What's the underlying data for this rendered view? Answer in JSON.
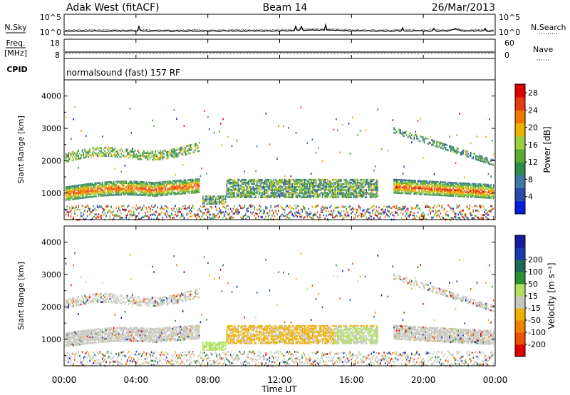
{
  "header": {
    "station": "Adak West (fitACF)",
    "beam": "Beam 14",
    "date": "26/Mar/2013"
  },
  "noise_panel": {
    "left_label": "N.Sky",
    "right_label": "N.Search",
    "left_ticks": [
      "10^5",
      "10^0"
    ],
    "right_ticks": [
      "10^5",
      "10^0"
    ]
  },
  "freq_panel": {
    "left_label_top": "Freq.",
    "left_label_bottom": "[MHz]",
    "right_label": "Nave",
    "left_ticks": [
      "18",
      "8"
    ],
    "right_ticks": [
      "60",
      "0"
    ]
  },
  "cpid_panel": {
    "label": "CPID",
    "mode_text": "normalsound (fast) 157 RF"
  },
  "colors": {
    "power": [
      "#0020e0",
      "#2a4aaa",
      "#3f78a0",
      "#2f8a4e",
      "#5aaa30",
      "#9ad040",
      "#f0b000",
      "#f07800",
      "#e83a10",
      "#e00000"
    ],
    "velocity": [
      "#e00000",
      "#f05000",
      "#f08000",
      "#f0b000",
      "#c8c8c0",
      "#b0e060",
      "#2a9030",
      "#1f6a5a",
      "#1a3ab0",
      "#1a1aa0"
    ],
    "fill_background": "#ffffff",
    "ground_scatter_velocity": "#c8c8c0"
  },
  "chart_data": [
    {
      "type": "heatmap",
      "panel": "power",
      "ylabel": "Slant Range [km]",
      "ylim": [
        180,
        4500
      ],
      "yticks": [
        "1000",
        "2000",
        "3000",
        "4000"
      ],
      "xlim": [
        0,
        24
      ],
      "colorbar": {
        "label": "Power [dB]",
        "ticks": [
          "4",
          "8",
          "12",
          "16",
          "20",
          "24",
          "28"
        ],
        "range": [
          0,
          30
        ]
      }
    },
    {
      "type": "heatmap",
      "panel": "velocity",
      "ylabel": "Slant Range [km]",
      "ylim": [
        180,
        4500
      ],
      "yticks": [
        "1000",
        "2000",
        "3000",
        "4000"
      ],
      "xlim": [
        0,
        24
      ],
      "xlabel": "Time UT",
      "xticks": [
        "00:00",
        "04:00",
        "08:00",
        "12:00",
        "16:00",
        "20:00",
        "00:00"
      ],
      "colorbar": {
        "label": "Velocity [m s⁻¹]",
        "ticks": [
          "-200",
          "-100",
          "-50",
          "-15",
          "15",
          "50",
          "100",
          "200"
        ],
        "range": [
          -250,
          250
        ]
      }
    }
  ]
}
